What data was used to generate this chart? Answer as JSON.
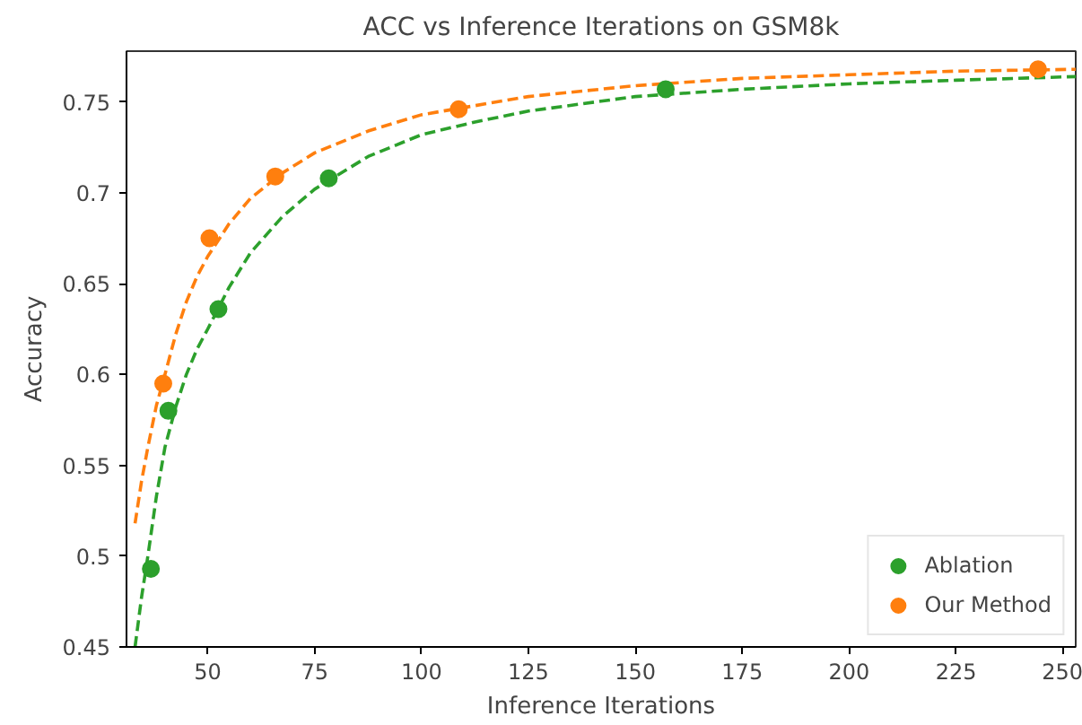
{
  "chart_data": {
    "type": "scatter",
    "title": "ACC vs Inference Iterations on GSM8k",
    "xlabel": "Inference Iterations",
    "ylabel": "Accuracy",
    "xlim": [
      31,
      253
    ],
    "ylim": [
      0.45,
      0.778
    ],
    "xticks": [
      50,
      75,
      100,
      125,
      150,
      175,
      200,
      225,
      250
    ],
    "yticks": [
      0.45,
      0.5,
      0.55,
      0.6,
      0.65,
      0.7,
      0.75
    ],
    "legend": "bottom right",
    "grid": false,
    "series": [
      {
        "type": "line",
        "line_style": "dashed",
        "marker": "none",
        "color": "#2ca02c",
        "x": [
          33,
          34.5,
          36,
          38,
          40,
          42.5,
          45,
          47.5,
          50,
          55,
          60,
          67.5,
          75,
          87.5,
          100,
          112.5,
          125,
          150,
          175,
          200,
          225,
          253
        ],
        "values": [
          0.45,
          0.477,
          0.5,
          0.533,
          0.56,
          0.582,
          0.6,
          0.614,
          0.625,
          0.648,
          0.667,
          0.687,
          0.702,
          0.72,
          0.732,
          0.739,
          0.745,
          0.753,
          0.757,
          0.76,
          0.762,
          0.764
        ]
      },
      {
        "type": "line",
        "line_style": "dashed",
        "marker": "none",
        "color": "#ff7f0e",
        "x": [
          33,
          34.5,
          36,
          38,
          40,
          42.5,
          45,
          47.5,
          50,
          55,
          60,
          67.5,
          75,
          87.5,
          100,
          112.5,
          125,
          150,
          175,
          200,
          225,
          253
        ],
        "values": [
          0.518,
          0.541,
          0.56,
          0.583,
          0.6,
          0.622,
          0.64,
          0.654,
          0.665,
          0.683,
          0.697,
          0.711,
          0.722,
          0.734,
          0.743,
          0.748,
          0.753,
          0.759,
          0.763,
          0.765,
          0.767,
          0.768
        ]
      },
      {
        "name": "Ablation",
        "marker": "circle",
        "color": "#2ca02c",
        "x": [
          36.7,
          40.8,
          52.5,
          78.3,
          157.1
        ],
        "values": [
          0.493,
          0.58,
          0.636,
          0.708,
          0.757
        ]
      },
      {
        "name": "Our Method",
        "marker": "circle",
        "color": "#ff7f0e",
        "x": [
          39.6,
          50.4,
          65.8,
          108.7,
          244.2
        ],
        "values": [
          0.595,
          0.675,
          0.709,
          0.746,
          0.768
        ]
      }
    ]
  }
}
